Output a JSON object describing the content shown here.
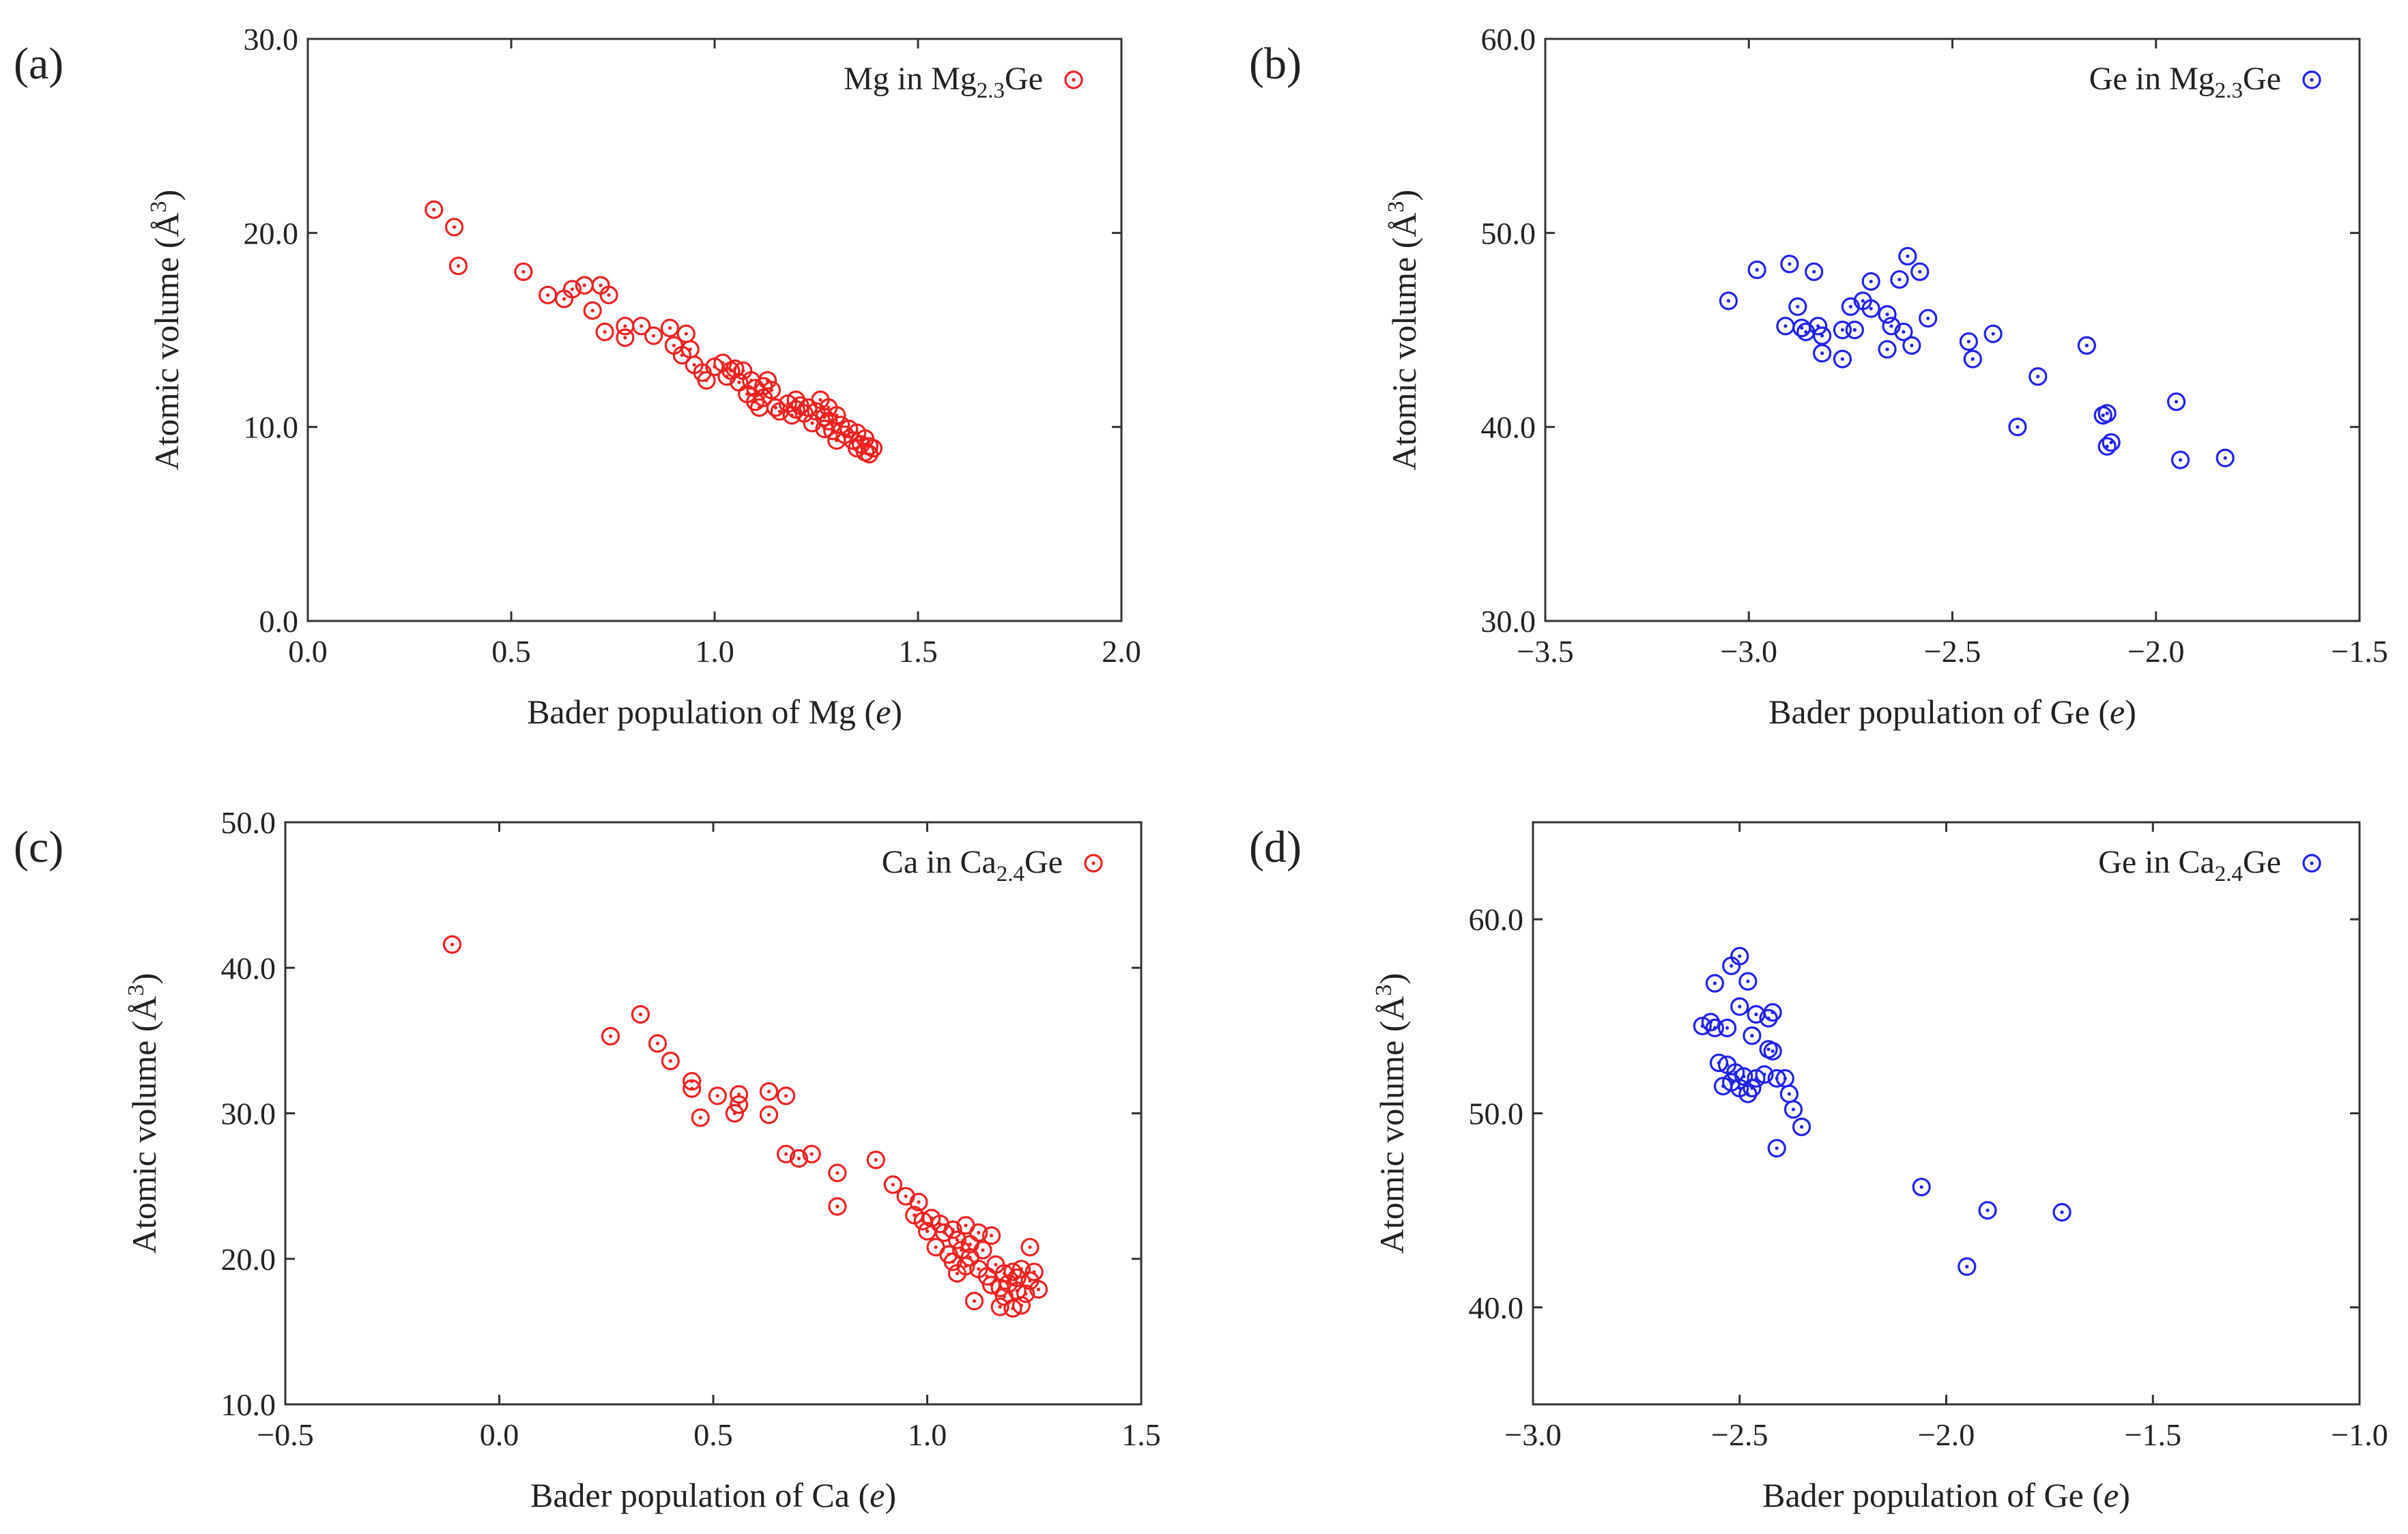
{
  "figure": {
    "panels": [
      "(a)",
      "(b)",
      "(c)",
      "(d)"
    ]
  },
  "chart_data": [
    {
      "type": "scatter",
      "panel_label": "(a)",
      "title": "",
      "xlabel": "Bader population of Mg (",
      "xlabel_unit": "e",
      "xlabel_close": ")",
      "ylabel": "Atomic volume (Å",
      "ylabel_sup": "3",
      "ylabel_close": ")",
      "xlim": [
        0.0,
        2.0
      ],
      "ylim": [
        0.0,
        30.0
      ],
      "xticks": [
        0.0,
        0.5,
        1.0,
        1.5,
        2.0
      ],
      "xtick_labels": [
        "0.0",
        "0.5",
        "1.0",
        "1.5",
        "2.0"
      ],
      "yticks": [
        0.0,
        10.0,
        20.0,
        30.0
      ],
      "ytick_labels": [
        "0.0",
        "10.0",
        "20.0",
        "30.0"
      ],
      "grid": false,
      "legend_placement": "top-right",
      "marker": "open-circle-dot",
      "color": "#ee2222",
      "series": [
        {
          "name": "Mg in Mg2.3Ge",
          "legend_parts": [
            "Mg in Mg",
            "2.3",
            "Ge"
          ],
          "points": [
            [
              0.31,
              21.2
            ],
            [
              0.36,
              20.3
            ],
            [
              0.37,
              18.3
            ],
            [
              0.53,
              18.0
            ],
            [
              0.59,
              16.8
            ],
            [
              0.63,
              16.6
            ],
            [
              0.65,
              17.1
            ],
            [
              0.68,
              17.3
            ],
            [
              0.7,
              16.0
            ],
            [
              0.72,
              17.3
            ],
            [
              0.73,
              14.9
            ],
            [
              0.74,
              16.8
            ],
            [
              0.78,
              14.6
            ],
            [
              0.78,
              15.2
            ],
            [
              0.82,
              15.2
            ],
            [
              0.85,
              14.7
            ],
            [
              0.89,
              15.1
            ],
            [
              0.9,
              14.2
            ],
            [
              0.92,
              13.7
            ],
            [
              0.93,
              14.8
            ],
            [
              0.94,
              14.0
            ],
            [
              0.95,
              13.2
            ],
            [
              0.97,
              12.8
            ],
            [
              0.98,
              12.4
            ],
            [
              1.0,
              13.1
            ],
            [
              1.02,
              13.3
            ],
            [
              1.03,
              12.6
            ],
            [
              1.04,
              12.9
            ],
            [
              1.05,
              13.0
            ],
            [
              1.06,
              12.3
            ],
            [
              1.07,
              12.9
            ],
            [
              1.08,
              11.7
            ],
            [
              1.09,
              12.4
            ],
            [
              1.1,
              12.0
            ],
            [
              1.1,
              11.3
            ],
            [
              1.11,
              11.0
            ],
            [
              1.12,
              12.1
            ],
            [
              1.12,
              11.5
            ],
            [
              1.13,
              12.4
            ],
            [
              1.14,
              11.9
            ],
            [
              1.15,
              11.0
            ],
            [
              1.16,
              10.8
            ],
            [
              1.18,
              11.2
            ],
            [
              1.19,
              10.6
            ],
            [
              1.2,
              11.4
            ],
            [
              1.2,
              10.9
            ],
            [
              1.21,
              11.1
            ],
            [
              1.22,
              10.7
            ],
            [
              1.23,
              11.0
            ],
            [
              1.24,
              10.2
            ],
            [
              1.25,
              10.8
            ],
            [
              1.26,
              11.4
            ],
            [
              1.27,
              10.5
            ],
            [
              1.27,
              9.9
            ],
            [
              1.28,
              11.0
            ],
            [
              1.28,
              10.3
            ],
            [
              1.29,
              9.8
            ],
            [
              1.3,
              10.6
            ],
            [
              1.3,
              9.3
            ],
            [
              1.31,
              10.1
            ],
            [
              1.32,
              9.6
            ],
            [
              1.33,
              9.9
            ],
            [
              1.34,
              9.3
            ],
            [
              1.35,
              8.9
            ],
            [
              1.35,
              9.7
            ],
            [
              1.36,
              9.1
            ],
            [
              1.37,
              8.7
            ],
            [
              1.37,
              9.4
            ],
            [
              1.38,
              8.6
            ],
            [
              1.38,
              9.0
            ],
            [
              1.39,
              8.9
            ]
          ]
        }
      ]
    },
    {
      "type": "scatter",
      "panel_label": "(b)",
      "title": "",
      "xlabel": "Bader population of Ge (",
      "xlabel_unit": "e",
      "xlabel_close": ")",
      "ylabel": "Atomic volume (Å",
      "ylabel_sup": "3",
      "ylabel_close": ")",
      "xlim": [
        -3.5,
        -1.5
      ],
      "ylim": [
        30.0,
        60.0
      ],
      "xticks": [
        -3.5,
        -3.0,
        -2.5,
        -2.0,
        -1.5
      ],
      "xtick_labels": [
        "−3.5",
        "−3.0",
        "−2.5",
        "−2.0",
        "−1.5"
      ],
      "yticks": [
        30.0,
        40.0,
        50.0,
        60.0
      ],
      "ytick_labels": [
        "30.0",
        "40.0",
        "50.0",
        "60.0"
      ],
      "grid": false,
      "legend_placement": "top-right",
      "marker": "open-circle-dot",
      "color": "#2222ee",
      "series": [
        {
          "name": "Ge in Mg2.3Ge",
          "legend_parts": [
            "Ge in Mg",
            "2.3",
            "Ge"
          ],
          "points": [
            [
              -3.05,
              46.5
            ],
            [
              -2.98,
              48.1
            ],
            [
              -2.9,
              48.4
            ],
            [
              -2.91,
              45.2
            ],
            [
              -2.88,
              46.2
            ],
            [
              -2.87,
              45.1
            ],
            [
              -2.86,
              44.9
            ],
            [
              -2.84,
              48.0
            ],
            [
              -2.83,
              45.2
            ],
            [
              -2.82,
              44.7
            ],
            [
              -2.82,
              43.8
            ],
            [
              -2.77,
              45.0
            ],
            [
              -2.77,
              43.5
            ],
            [
              -2.75,
              46.2
            ],
            [
              -2.74,
              45.0
            ],
            [
              -2.72,
              46.5
            ],
            [
              -2.7,
              47.5
            ],
            [
              -2.7,
              46.1
            ],
            [
              -2.66,
              45.8
            ],
            [
              -2.66,
              44.0
            ],
            [
              -2.65,
              45.2
            ],
            [
              -2.63,
              47.6
            ],
            [
              -2.62,
              44.9
            ],
            [
              -2.61,
              48.8
            ],
            [
              -2.6,
              44.2
            ],
            [
              -2.58,
              48.0
            ],
            [
              -2.56,
              45.6
            ],
            [
              -2.46,
              44.4
            ],
            [
              -2.45,
              43.5
            ],
            [
              -2.4,
              44.8
            ],
            [
              -2.34,
              40.0
            ],
            [
              -2.29,
              42.6
            ],
            [
              -2.17,
              44.2
            ],
            [
              -2.13,
              40.6
            ],
            [
              -2.12,
              40.7
            ],
            [
              -2.12,
              39.0
            ],
            [
              -2.11,
              39.2
            ],
            [
              -1.95,
              41.3
            ],
            [
              -1.94,
              38.3
            ],
            [
              -1.83,
              38.4
            ]
          ]
        }
      ]
    },
    {
      "type": "scatter",
      "panel_label": "(c)",
      "title": "",
      "xlabel": "Bader population of Ca (",
      "xlabel_unit": "e",
      "xlabel_close": ")",
      "ylabel": "Atomic volume (Å",
      "ylabel_sup": "3",
      "ylabel_close": ")",
      "xlim": [
        -0.5,
        1.5
      ],
      "ylim": [
        10.0,
        50.0
      ],
      "xticks": [
        -0.5,
        0.0,
        0.5,
        1.0,
        1.5
      ],
      "xtick_labels": [
        "−0.5",
        "0.0",
        "0.5",
        "1.0",
        "1.5"
      ],
      "yticks": [
        10.0,
        20.0,
        30.0,
        40.0,
        50.0
      ],
      "ytick_labels": [
        "10.0",
        "20.0",
        "30.0",
        "40.0",
        "50.0"
      ],
      "grid": false,
      "legend_placement": "top-right",
      "marker": "open-circle-dot",
      "color": "#ee2222",
      "series": [
        {
          "name": "Ca in Ca2.4Ge",
          "legend_parts": [
            "Ca in Ca",
            "2.4",
            "Ge"
          ],
          "points": [
            [
              -0.11,
              41.6
            ],
            [
              0.26,
              35.3
            ],
            [
              0.33,
              36.8
            ],
            [
              0.37,
              34.8
            ],
            [
              0.4,
              33.6
            ],
            [
              0.45,
              32.2
            ],
            [
              0.45,
              31.7
            ],
            [
              0.47,
              29.7
            ],
            [
              0.51,
              31.2
            ],
            [
              0.55,
              30.0
            ],
            [
              0.56,
              31.3
            ],
            [
              0.56,
              30.6
            ],
            [
              0.63,
              31.5
            ],
            [
              0.63,
              29.9
            ],
            [
              0.67,
              31.2
            ],
            [
              0.67,
              27.2
            ],
            [
              0.7,
              26.9
            ],
            [
              0.73,
              27.2
            ],
            [
              0.79,
              25.9
            ],
            [
              0.79,
              23.6
            ],
            [
              0.88,
              26.8
            ],
            [
              0.92,
              25.1
            ],
            [
              0.95,
              24.3
            ],
            [
              0.97,
              23.0
            ],
            [
              0.98,
              23.9
            ],
            [
              0.99,
              22.6
            ],
            [
              1.0,
              21.9
            ],
            [
              1.01,
              22.8
            ],
            [
              1.02,
              20.8
            ],
            [
              1.03,
              22.4
            ],
            [
              1.04,
              21.8
            ],
            [
              1.05,
              20.3
            ],
            [
              1.06,
              22.0
            ],
            [
              1.06,
              19.8
            ],
            [
              1.07,
              21.3
            ],
            [
              1.07,
              19.0
            ],
            [
              1.08,
              20.6
            ],
            [
              1.09,
              22.3
            ],
            [
              1.09,
              19.5
            ],
            [
              1.1,
              21.0
            ],
            [
              1.1,
              20.1
            ],
            [
              1.11,
              17.1
            ],
            [
              1.12,
              21.8
            ],
            [
              1.12,
              19.3
            ],
            [
              1.13,
              20.6
            ],
            [
              1.14,
              18.8
            ],
            [
              1.15,
              21.6
            ],
            [
              1.15,
              18.2
            ],
            [
              1.16,
              19.6
            ],
            [
              1.17,
              18.0
            ],
            [
              1.17,
              16.7
            ],
            [
              1.18,
              19.0
            ],
            [
              1.18,
              17.4
            ],
            [
              1.19,
              18.3
            ],
            [
              1.2,
              19.1
            ],
            [
              1.2,
              16.6
            ],
            [
              1.21,
              17.8
            ],
            [
              1.21,
              18.7
            ],
            [
              1.22,
              16.8
            ],
            [
              1.22,
              19.3
            ],
            [
              1.23,
              17.6
            ],
            [
              1.24,
              18.5
            ],
            [
              1.24,
              20.8
            ],
            [
              1.25,
              19.1
            ],
            [
              1.26,
              17.9
            ]
          ]
        }
      ]
    },
    {
      "type": "scatter",
      "panel_label": "(d)",
      "title": "",
      "xlabel": "Bader population of Ge (",
      "xlabel_unit": "e",
      "xlabel_close": ")",
      "ylabel": "Atomic volume (Å",
      "ylabel_sup": "3",
      "ylabel_close": ")",
      "xlim": [
        -3.0,
        -1.0
      ],
      "ylim": [
        35.0,
        65.0
      ],
      "xticks": [
        -3.0,
        -2.5,
        -2.0,
        -1.5,
        -1.0
      ],
      "xtick_labels": [
        "−3.0",
        "−2.5",
        "−2.0",
        "−1.5",
        "−1.0"
      ],
      "yticks": [
        40.0,
        50.0,
        60.0
      ],
      "ytick_labels": [
        "40.0",
        "50.0",
        "60.0"
      ],
      "grid": false,
      "legend_placement": "top-right",
      "marker": "open-circle-dot",
      "color": "#2222ee",
      "series": [
        {
          "name": "Ge in Ca2.4Ge",
          "legend_parts": [
            "Ge in Ca",
            "2.4",
            "Ge"
          ],
          "points": [
            [
              -2.59,
              54.5
            ],
            [
              -2.57,
              54.7
            ],
            [
              -2.56,
              56.7
            ],
            [
              -2.56,
              54.4
            ],
            [
              -2.55,
              52.6
            ],
            [
              -2.54,
              51.4
            ],
            [
              -2.53,
              54.4
            ],
            [
              -2.53,
              52.5
            ],
            [
              -2.52,
              57.6
            ],
            [
              -2.52,
              51.6
            ],
            [
              -2.51,
              52.1
            ],
            [
              -2.5,
              58.1
            ],
            [
              -2.5,
              55.5
            ],
            [
              -2.5,
              51.3
            ],
            [
              -2.49,
              51.9
            ],
            [
              -2.48,
              56.8
            ],
            [
              -2.48,
              51.0
            ],
            [
              -2.47,
              54.0
            ],
            [
              -2.47,
              51.3
            ],
            [
              -2.46,
              55.1
            ],
            [
              -2.46,
              51.8
            ],
            [
              -2.44,
              52.0
            ],
            [
              -2.43,
              53.3
            ],
            [
              -2.43,
              54.9
            ],
            [
              -2.42,
              53.2
            ],
            [
              -2.42,
              55.2
            ],
            [
              -2.41,
              48.2
            ],
            [
              -2.41,
              51.8
            ],
            [
              -2.39,
              51.8
            ],
            [
              -2.38,
              51.0
            ],
            [
              -2.37,
              50.2
            ],
            [
              -2.35,
              49.3
            ],
            [
              -2.06,
              46.2
            ],
            [
              -1.95,
              42.1
            ],
            [
              -1.9,
              45.0
            ],
            [
              -1.72,
              44.9
            ]
          ]
        }
      ]
    }
  ]
}
